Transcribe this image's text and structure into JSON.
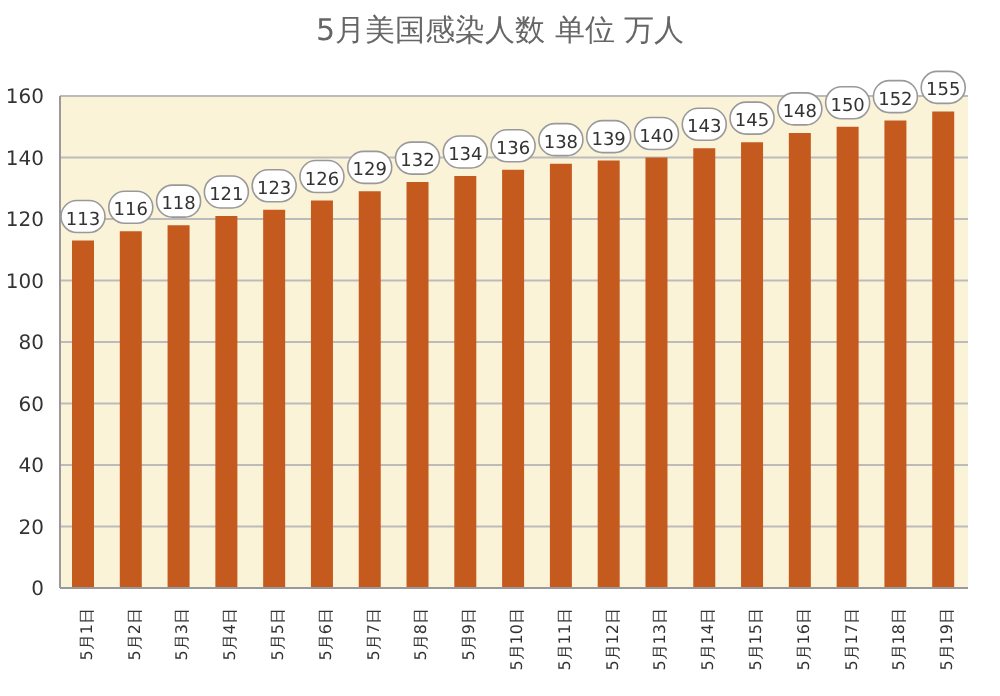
{
  "chart_data": {
    "type": "bar",
    "title": "5月美国感染人数 单位 万人",
    "categories": [
      "5月1日",
      "5月2日",
      "5月3日",
      "5月4日",
      "5月5日",
      "5月6日",
      "5月7日",
      "5月8日",
      "5月9日",
      "5月10日",
      "5月11日",
      "5月12日",
      "5月13日",
      "5月14日",
      "5月15日",
      "5月16日",
      "5月17日",
      "5月18日",
      "5月19日"
    ],
    "values": [
      113,
      116,
      118,
      121,
      123,
      126,
      129,
      132,
      134,
      136,
      138,
      139,
      140,
      143,
      145,
      148,
      150,
      152,
      155
    ],
    "color": "#c55a1e",
    "ylim": [
      0,
      160
    ],
    "yticks": [
      0,
      20,
      40,
      60,
      80,
      100,
      120,
      140,
      160
    ],
    "grid": "y",
    "data_labels": true
  }
}
